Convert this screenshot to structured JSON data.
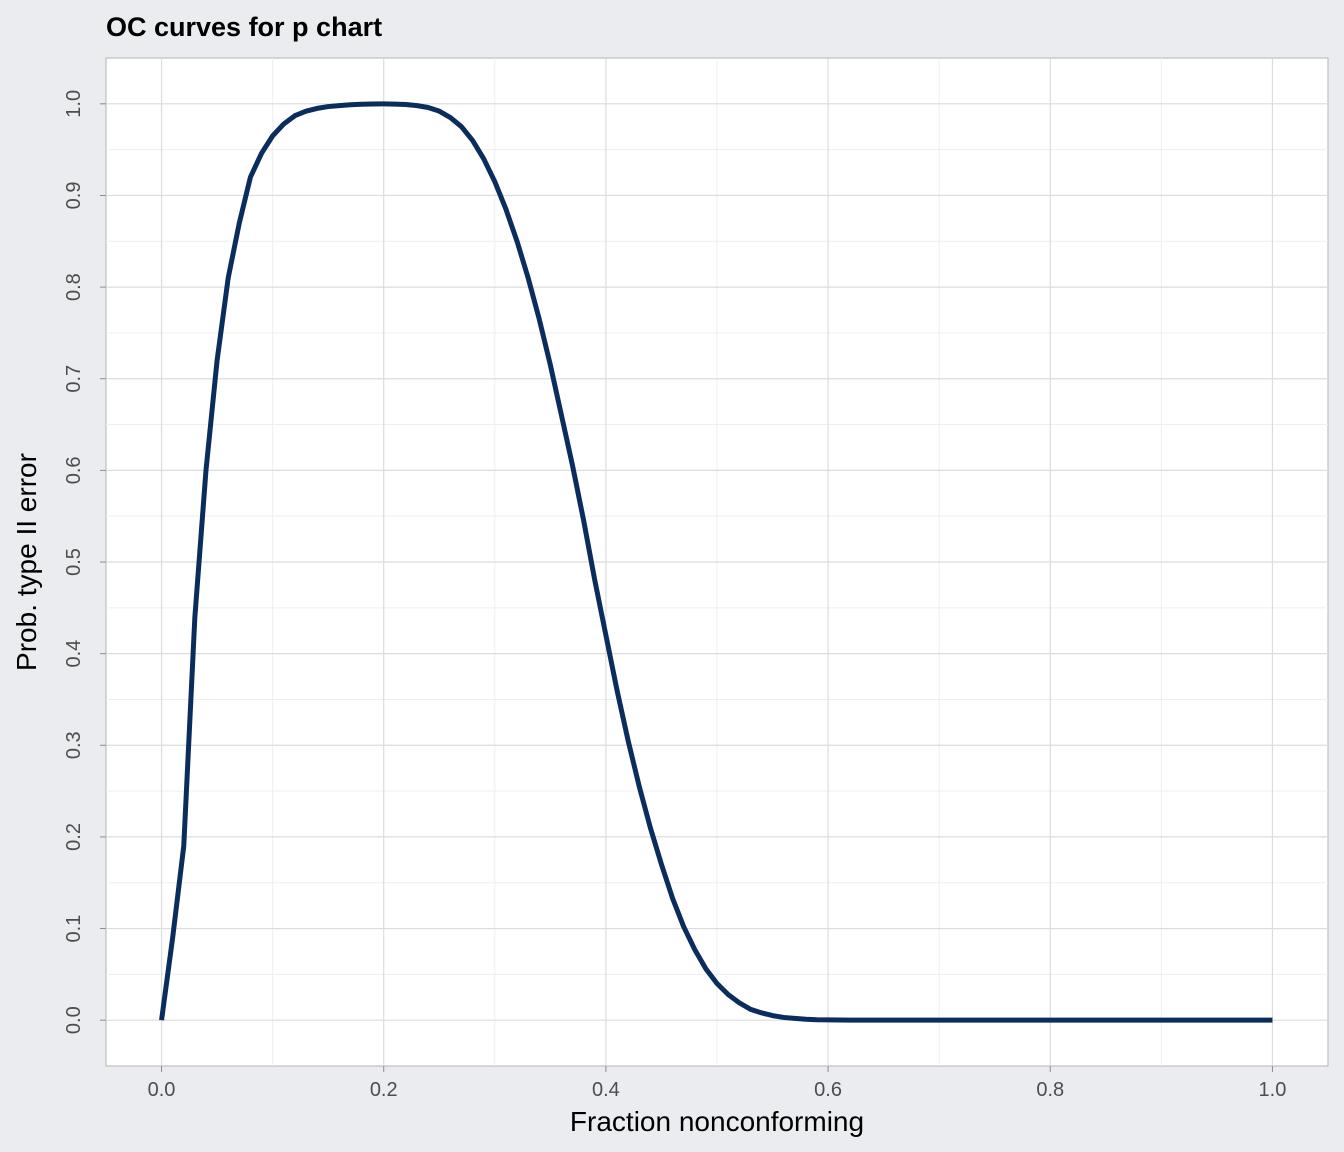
{
  "chart_data": {
    "type": "line",
    "title": "OC curves for p chart",
    "xlabel": "Fraction nonconforming",
    "ylabel": "Prob. type II error",
    "xlim": [
      -0.05,
      1.05
    ],
    "ylim": [
      -0.05,
      1.05
    ],
    "x_ticks": [
      0.0,
      0.2,
      0.4,
      0.6,
      0.8,
      1.0
    ],
    "x_tick_labels": [
      "0.0",
      "0.2",
      "0.4",
      "0.6",
      "0.8",
      "1.0"
    ],
    "y_ticks": [
      0.0,
      0.1,
      0.2,
      0.3,
      0.4,
      0.5,
      0.6,
      0.7,
      0.8,
      0.9,
      1.0
    ],
    "y_tick_labels": [
      "0.0",
      "0.1",
      "0.2",
      "0.3",
      "0.4",
      "0.5",
      "0.6",
      "0.7",
      "0.8",
      "0.9",
      "1.0"
    ],
    "grid": true,
    "legend": "none",
    "series": [
      {
        "color": "#0B2D5E",
        "x": [
          0.0,
          0.01,
          0.02,
          0.03,
          0.04,
          0.05,
          0.06,
          0.07,
          0.08,
          0.09,
          0.1,
          0.11,
          0.12,
          0.13,
          0.14,
          0.15,
          0.16,
          0.17,
          0.18,
          0.19,
          0.2,
          0.21,
          0.22,
          0.23,
          0.24,
          0.25,
          0.26,
          0.27,
          0.28,
          0.29,
          0.3,
          0.31,
          0.32,
          0.33,
          0.34,
          0.35,
          0.36,
          0.37,
          0.38,
          0.39,
          0.4,
          0.41,
          0.42,
          0.43,
          0.44,
          0.45,
          0.46,
          0.47,
          0.48,
          0.49,
          0.5,
          0.51,
          0.52,
          0.53,
          0.54,
          0.55,
          0.56,
          0.57,
          0.58,
          0.59,
          0.6,
          0.62,
          0.64,
          0.66,
          0.68,
          0.7,
          0.75,
          0.8,
          0.85,
          0.9,
          0.95,
          1.0
        ],
        "y": [
          0.0,
          0.09,
          0.19,
          0.44,
          0.6,
          0.72,
          0.81,
          0.87,
          0.92,
          0.946,
          0.965,
          0.978,
          0.987,
          0.992,
          0.995,
          0.997,
          0.998,
          0.999,
          0.9995,
          0.9998,
          0.9999,
          0.9997,
          0.9992,
          0.998,
          0.996,
          0.992,
          0.985,
          0.975,
          0.96,
          0.94,
          0.915,
          0.885,
          0.85,
          0.81,
          0.765,
          0.715,
          0.66,
          0.605,
          0.545,
          0.48,
          0.42,
          0.36,
          0.305,
          0.255,
          0.21,
          0.17,
          0.133,
          0.102,
          0.077,
          0.056,
          0.04,
          0.028,
          0.019,
          0.012,
          0.008,
          0.005,
          0.003,
          0.002,
          0.001,
          0.0005,
          0.0003,
          0.0001,
          0.0,
          0.0,
          0.0,
          0.0,
          0.0,
          0.0,
          0.0,
          0.0,
          0.0,
          0.0
        ]
      }
    ]
  }
}
